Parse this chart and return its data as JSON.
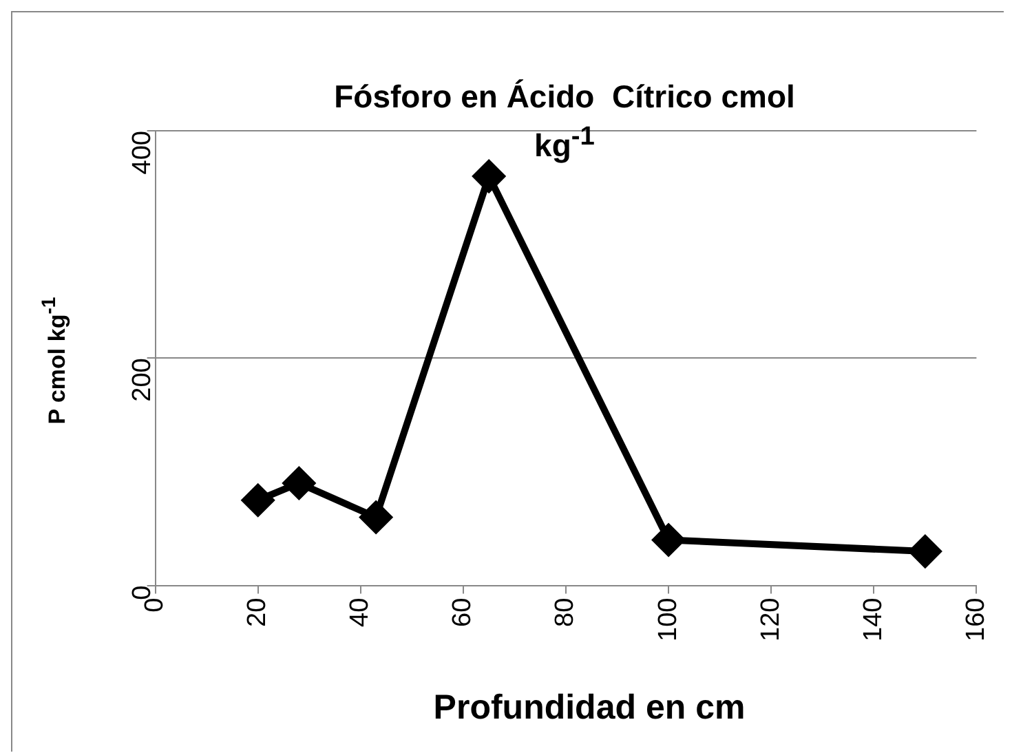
{
  "chart_data": {
    "type": "line",
    "title": "Fósforo en Ácido  Cítrico cmol kg$^{-1}$",
    "xlabel": "Profundidad en cm",
    "ylabel": "P  cmol kg$^{-1}$",
    "x": [
      20,
      28,
      43,
      65,
      100,
      150
    ],
    "series": [
      {
        "color": "#000000",
        "values": [
          75,
          90,
          60,
          360,
          40,
          30
        ]
      }
    ],
    "xlim": [
      0,
      160
    ],
    "xticks": [
      0,
      20,
      40,
      60,
      80,
      100,
      120,
      140,
      160
    ],
    "ylim": [
      0,
      400
    ],
    "yticks": [
      0,
      200,
      400
    ],
    "grid": "y",
    "legend": false,
    "marker": "diamond",
    "line_style": "solid"
  }
}
